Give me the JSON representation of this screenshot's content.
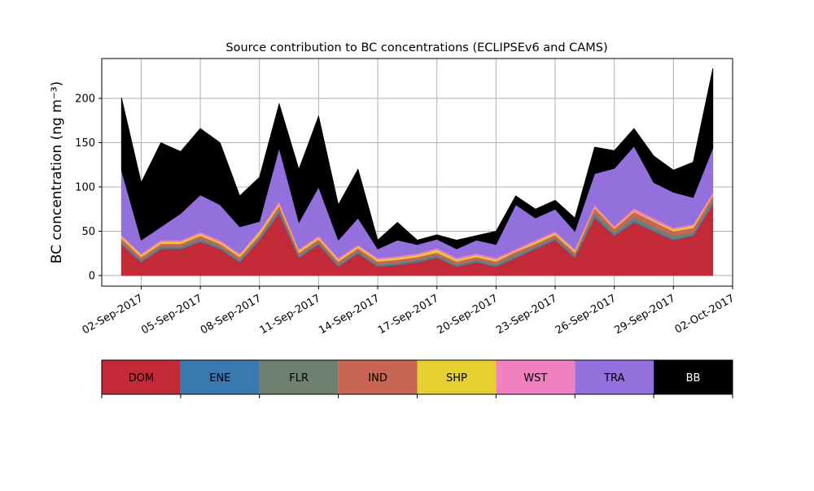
{
  "chart_data": {
    "type": "stacked_area",
    "title": "Source contribution to BC concentrations (ECLIPSEv6 and CAMS)",
    "y_label": "BC concentration (ng m⁻³)",
    "x": [
      "2017-09-01",
      "2017-09-02",
      "2017-09-03",
      "2017-09-04",
      "2017-09-05",
      "2017-09-06",
      "2017-09-07",
      "2017-09-08",
      "2017-09-09",
      "2017-09-10",
      "2017-09-11",
      "2017-09-12",
      "2017-09-13",
      "2017-09-14",
      "2017-09-15",
      "2017-09-16",
      "2017-09-17",
      "2017-09-18",
      "2017-09-19",
      "2017-09-20",
      "2017-09-21",
      "2017-09-22",
      "2017-09-23",
      "2017-09-24",
      "2017-09-25",
      "2017-09-26",
      "2017-09-27",
      "2017-09-28",
      "2017-09-29",
      "2017-09-30",
      "2017-10-01"
    ],
    "series": [
      {
        "name": "DOM",
        "color": "#c22a37",
        "values": [
          35,
          15,
          30,
          30,
          38,
          30,
          15,
          40,
          70,
          20,
          35,
          10,
          25,
          10,
          12,
          15,
          20,
          10,
          15,
          10,
          20,
          30,
          40,
          20,
          65,
          45,
          60,
          50,
          40,
          45,
          80
        ]
      },
      {
        "name": "ENE",
        "color": "#3a78b0",
        "values": [
          1,
          1,
          1,
          1,
          1,
          1,
          1,
          1,
          2,
          1,
          1,
          1,
          1,
          1,
          1,
          1,
          1,
          1,
          1,
          1,
          1,
          1,
          1,
          1,
          2,
          1,
          2,
          1,
          1,
          1,
          2
        ]
      },
      {
        "name": "FLR",
        "color": "#6f8070",
        "values": [
          2,
          2,
          2,
          2,
          3,
          2,
          2,
          2,
          3,
          2,
          2,
          2,
          2,
          2,
          2,
          2,
          2,
          2,
          2,
          2,
          3,
          2,
          2,
          2,
          4,
          3,
          4,
          4,
          4,
          3,
          3
        ]
      },
      {
        "name": "IND",
        "color": "#c86555",
        "values": [
          4,
          3,
          3,
          3,
          3,
          3,
          3,
          3,
          4,
          3,
          3,
          3,
          3,
          3,
          3,
          3,
          3,
          3,
          3,
          3,
          3,
          3,
          3,
          3,
          5,
          4,
          6,
          6,
          5,
          5,
          5
        ]
      },
      {
        "name": "SHP",
        "color": "#e6cf30",
        "values": [
          2,
          2,
          2,
          2,
          2,
          2,
          2,
          3,
          2,
          2,
          2,
          2,
          2,
          2,
          2,
          2,
          3,
          2,
          2,
          2,
          1,
          2,
          2,
          2,
          1,
          1,
          1,
          1,
          2,
          2,
          1
        ]
      },
      {
        "name": "WST",
        "color": "#f080c0",
        "values": [
          2,
          2,
          2,
          2,
          2,
          2,
          2,
          2,
          3,
          2,
          2,
          2,
          2,
          2,
          2,
          2,
          2,
          2,
          2,
          2,
          2,
          2,
          2,
          2,
          3,
          2,
          3,
          3,
          2,
          2,
          3
        ]
      },
      {
        "name": "TRA",
        "color": "#9370db",
        "values": [
          73,
          15,
          15,
          30,
          42,
          40,
          30,
          10,
          60,
          30,
          55,
          20,
          30,
          10,
          18,
          10,
          10,
          10,
          15,
          15,
          50,
          25,
          25,
          20,
          35,
          65,
          70,
          40,
          40,
          30,
          50
        ]
      },
      {
        "name": "BB",
        "color": "#000000",
        "values": [
          82,
          65,
          95,
          70,
          75,
          70,
          35,
          50,
          50,
          60,
          80,
          40,
          55,
          10,
          20,
          5,
          5,
          10,
          5,
          15,
          10,
          10,
          10,
          15,
          30,
          20,
          20,
          30,
          25,
          40,
          90
        ]
      }
    ],
    "xlim": [
      "2017-08-31",
      "2017-10-02"
    ],
    "xticks": [
      {
        "value": "2017-09-02",
        "label": "02-Sep-2017"
      },
      {
        "value": "2017-09-05",
        "label": "05-Sep-2017"
      },
      {
        "value": "2017-09-08",
        "label": "08-Sep-2017"
      },
      {
        "value": "2017-09-11",
        "label": "11-Sep-2017"
      },
      {
        "value": "2017-09-14",
        "label": "14-Sep-2017"
      },
      {
        "value": "2017-09-17",
        "label": "17-Sep-2017"
      },
      {
        "value": "2017-09-20",
        "label": "20-Sep-2017"
      },
      {
        "value": "2017-09-23",
        "label": "23-Sep-2017"
      },
      {
        "value": "2017-09-26",
        "label": "26-Sep-2017"
      },
      {
        "value": "2017-09-29",
        "label": "29-Sep-2017"
      },
      {
        "value": "2017-10-02",
        "label": "02-Oct-2017"
      }
    ],
    "ylim": [
      -12,
      245
    ],
    "yticks": [
      0,
      50,
      100,
      150,
      200
    ],
    "grid": true
  }
}
